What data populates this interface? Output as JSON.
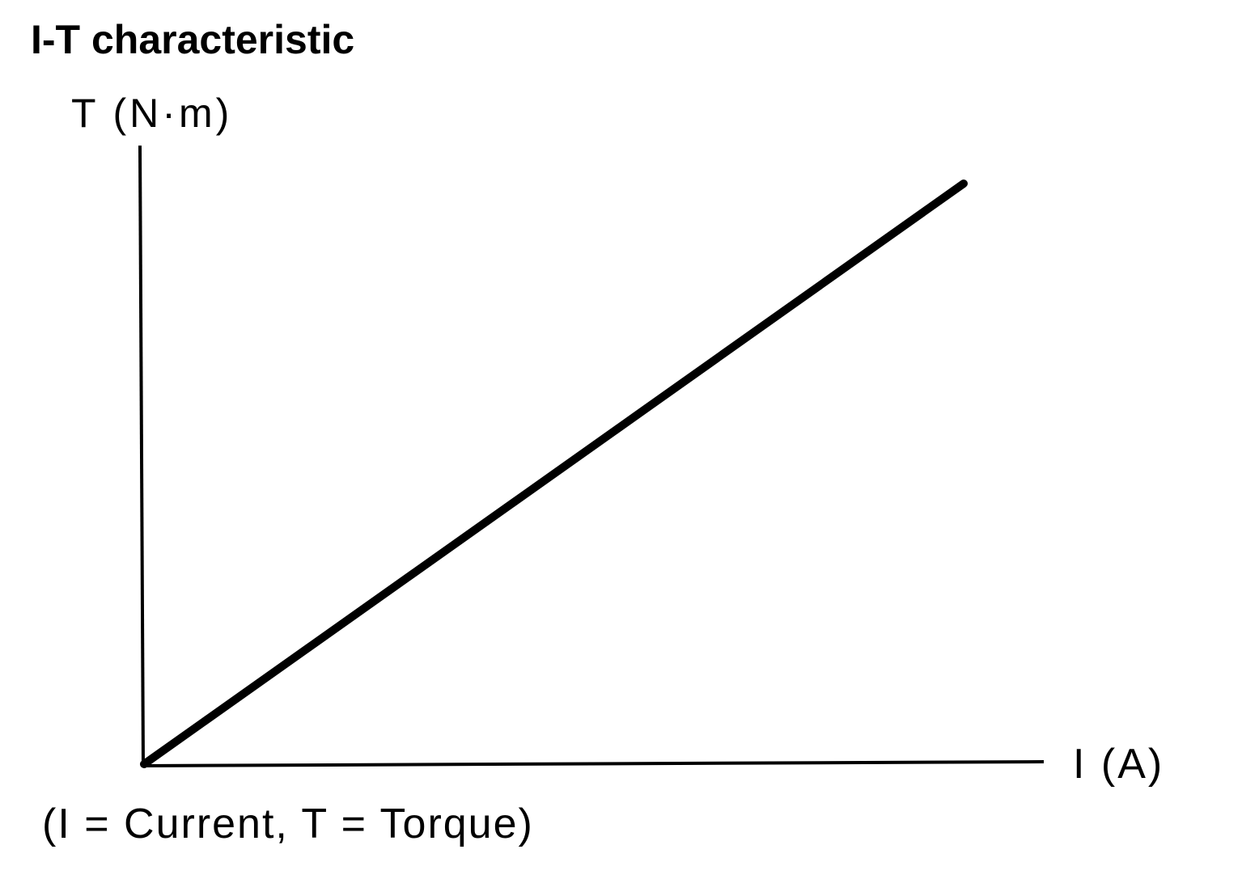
{
  "title": "I-T characteristic",
  "y_axis_label": "T (N·m)",
  "x_axis_label": "I (A)",
  "note": "(I = Current, T = Torque)"
}
